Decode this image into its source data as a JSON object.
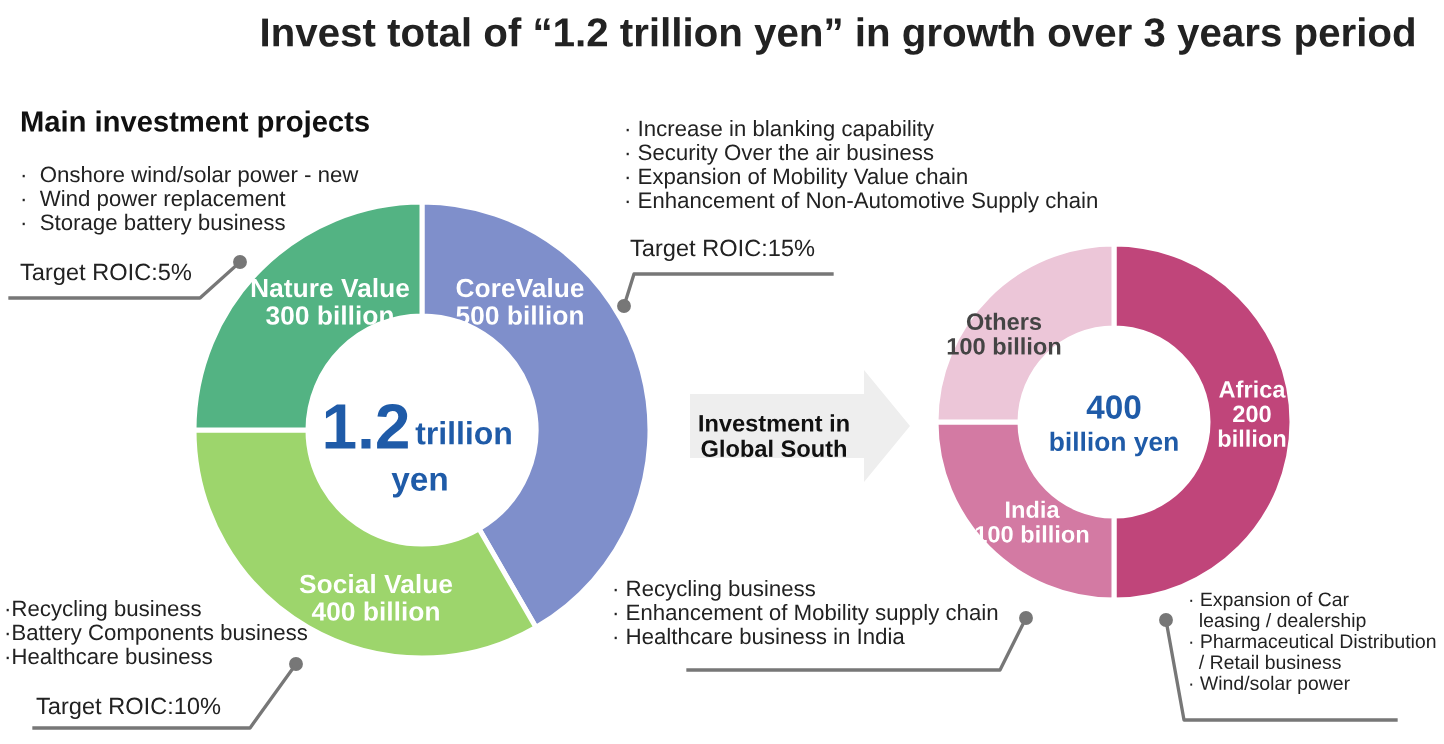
{
  "chart_data": [
    {
      "type": "donut",
      "title": "Invest total of “1.2 trillion yen” in growth over 3 years period",
      "subtitle": "Main investment projects",
      "categories": [
        "CoreValue",
        "Social Value",
        "Nature Value"
      ],
      "values": [
        500,
        400,
        300
      ],
      "value_labels": [
        "500 billion",
        "400 billion",
        "300 billion"
      ],
      "colors": [
        "#7f8fcb",
        "#9dd56c",
        "#53b383"
      ],
      "annotations": [
        "1.2",
        "trillion",
        "yen",
        "·  Onshore wind/solar power - new\n·  Wind power replacement\n·  Storage battery business",
        "Target ROIC:5%",
        "·Recycling business\n·Battery Components business\n·Healthcare business",
        "Target ROIC:10%",
        "· Increase in blanking capability\n· Security Over the air business\n· Expansion of Mobility Value chain\n· Enhancement of Non-Automotive Supply chain",
        "Target ROIC:15%"
      ]
    },
    {
      "type": "donut",
      "categories": [
        "Africa",
        "India",
        "Others"
      ],
      "values": [
        200,
        100,
        100
      ],
      "value_labels": [
        "200 billion",
        "100 billion",
        "100 billion"
      ],
      "colors": [
        "#c0457a",
        "#d37aa3",
        "#ecc6d8"
      ],
      "annotations": [
        "400",
        "billion yen",
        "Investment in\nGlobal South",
        "· Recycling business\n· Enhancement of Mobility supply chain\n· Healthcare business in India",
        "· Expansion of Car\n  leasing / dealership\n· Pharmaceutical Distribution\n  / Retail business\n· Wind/solar power"
      ]
    }
  ]
}
